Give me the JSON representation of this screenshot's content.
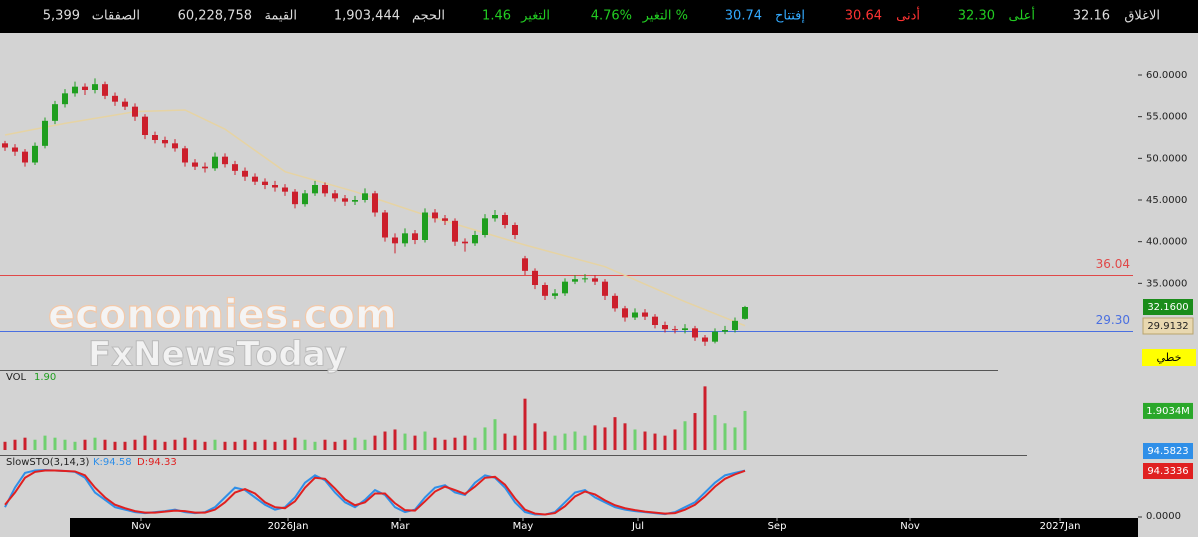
{
  "chart_data": {
    "type": "candlestick",
    "header": [
      {
        "label": "الاغلاق",
        "value": "32.16",
        "color": "#dddddd",
        "value_color": "#dddddd"
      },
      {
        "label": "أعلى",
        "value": "32.30",
        "color": "#22cc22",
        "value_color": "#22cc22"
      },
      {
        "label": "أدنى",
        "value": "30.64",
        "color": "#ff3333",
        "value_color": "#ff3333"
      },
      {
        "label": "إفتتاح",
        "value": "30.74",
        "color": "#33aaff",
        "value_color": "#33aaff"
      },
      {
        "label": "التغير %",
        "value": "4.76%",
        "color": "#22cc22",
        "value_color": "#22cc22"
      },
      {
        "label": "التغير",
        "value": "1.46",
        "color": "#22cc22",
        "value_color": "#22cc22"
      },
      {
        "label": "الحجم",
        "value": "1,903,444",
        "color": "#dddddd",
        "value_color": "#dddddd"
      },
      {
        "label": "القيمة",
        "value": "60,228,758",
        "color": "#dddddd",
        "value_color": "#dddddd"
      },
      {
        "label": "الصفقات",
        "value": "5,399",
        "color": "#dddddd",
        "value_color": "#dddddd"
      }
    ],
    "watermark": [
      "economies.com",
      "FxNewsToday"
    ],
    "up_color": "#1f9e1f",
    "down_color": "#cc1f2c",
    "xlim": [
      -0.5,
      113.5
    ],
    "xticks": [
      {
        "value": 13.6,
        "label": "Nov"
      },
      {
        "value": 28.3,
        "label": "2026Jan"
      },
      {
        "value": 39.5,
        "label": "Mar"
      },
      {
        "value": 51.8,
        "label": "May"
      },
      {
        "value": 63.3,
        "label": "Jul"
      },
      {
        "value": 77.2,
        "label": "Sep"
      },
      {
        "value": 90.5,
        "label": "Nov"
      },
      {
        "value": 105.5,
        "label": "2027Jan"
      }
    ],
    "ylim": [
      24.6,
      65.04
    ],
    "yticks": [
      {
        "value": 35,
        "label": "35.0000"
      },
      {
        "value": 40,
        "label": "40.0000"
      },
      {
        "value": 45,
        "label": "45.0000"
      },
      {
        "value": 50,
        "label": "50.0000"
      },
      {
        "value": 55,
        "label": "55.0000"
      },
      {
        "value": 60,
        "label": "60.0000"
      }
    ],
    "candles": [
      [
        51.8,
        52.1,
        50.9,
        51.3
      ],
      [
        51.3,
        51.7,
        50.3,
        50.8
      ],
      [
        50.8,
        51.1,
        49.0,
        49.5
      ],
      [
        49.5,
        51.9,
        49.2,
        51.5
      ],
      [
        51.5,
        54.9,
        51.2,
        54.5
      ],
      [
        54.5,
        56.9,
        54.1,
        56.5
      ],
      [
        56.5,
        58.3,
        56.1,
        57.8
      ],
      [
        57.8,
        59.2,
        57.4,
        58.6
      ],
      [
        58.6,
        59.0,
        57.6,
        58.2
      ],
      [
        58.2,
        59.6,
        57.8,
        58.9
      ],
      [
        58.9,
        59.2,
        57.1,
        57.5
      ],
      [
        57.5,
        57.9,
        56.3,
        56.8
      ],
      [
        56.8,
        57.2,
        55.8,
        56.2
      ],
      [
        56.2,
        56.6,
        54.5,
        55.0
      ],
      [
        55.0,
        55.3,
        52.3,
        52.8
      ],
      [
        52.8,
        53.2,
        51.8,
        52.2
      ],
      [
        52.2,
        52.6,
        51.3,
        51.8
      ],
      [
        51.8,
        52.3,
        50.8,
        51.2
      ],
      [
        51.2,
        51.5,
        49.0,
        49.5
      ],
      [
        49.5,
        49.9,
        48.6,
        49.0
      ],
      [
        49.0,
        49.5,
        48.3,
        48.8
      ],
      [
        48.8,
        50.7,
        48.5,
        50.2
      ],
      [
        50.2,
        50.6,
        48.9,
        49.3
      ],
      [
        49.3,
        49.7,
        48.0,
        48.5
      ],
      [
        48.5,
        48.9,
        47.3,
        47.8
      ],
      [
        47.8,
        48.2,
        46.8,
        47.2
      ],
      [
        47.2,
        47.6,
        46.3,
        46.8
      ],
      [
        46.8,
        47.3,
        46.0,
        46.5
      ],
      [
        46.5,
        46.9,
        45.5,
        46.0
      ],
      [
        46.0,
        46.3,
        44.0,
        44.5
      ],
      [
        44.5,
        46.2,
        44.2,
        45.8
      ],
      [
        45.8,
        47.3,
        45.5,
        46.8
      ],
      [
        46.8,
        47.1,
        45.4,
        45.8
      ],
      [
        45.8,
        46.2,
        44.8,
        45.2
      ],
      [
        45.2,
        45.6,
        44.3,
        44.8
      ],
      [
        44.8,
        45.5,
        44.4,
        45.0
      ],
      [
        45.0,
        46.4,
        44.7,
        45.8
      ],
      [
        45.8,
        46.1,
        43.0,
        43.5
      ],
      [
        43.5,
        43.8,
        40.0,
        40.5
      ],
      [
        40.5,
        41.0,
        38.6,
        39.8
      ],
      [
        39.8,
        41.6,
        39.4,
        41.0
      ],
      [
        41.0,
        41.4,
        39.7,
        40.2
      ],
      [
        40.2,
        44.0,
        39.9,
        43.5
      ],
      [
        43.5,
        43.9,
        42.3,
        42.8
      ],
      [
        42.8,
        43.2,
        42.0,
        42.5
      ],
      [
        42.5,
        42.8,
        39.5,
        40.0
      ],
      [
        40.0,
        40.4,
        38.8,
        39.8
      ],
      [
        39.8,
        41.3,
        39.5,
        40.8
      ],
      [
        40.8,
        43.3,
        40.5,
        42.8
      ],
      [
        42.8,
        43.8,
        42.4,
        43.2
      ],
      [
        43.2,
        43.5,
        41.6,
        42.0
      ],
      [
        42.0,
        42.3,
        40.3,
        40.8
      ],
      [
        38.0,
        38.3,
        36.0,
        36.5
      ],
      [
        36.5,
        36.8,
        34.3,
        34.8
      ],
      [
        34.8,
        35.1,
        33.0,
        33.5
      ],
      [
        33.5,
        34.3,
        33.1,
        33.8
      ],
      [
        33.8,
        35.6,
        33.5,
        35.2
      ],
      [
        35.2,
        36.0,
        34.9,
        35.5
      ],
      [
        35.5,
        36.1,
        35.1,
        35.6
      ],
      [
        35.6,
        36.0,
        34.8,
        35.2
      ],
      [
        35.2,
        35.5,
        33.0,
        33.5
      ],
      [
        33.5,
        33.8,
        31.6,
        32.0
      ],
      [
        32.0,
        32.3,
        30.4,
        30.9
      ],
      [
        30.9,
        32.0,
        30.6,
        31.5
      ],
      [
        31.5,
        31.9,
        30.6,
        31.0
      ],
      [
        31.0,
        31.3,
        29.6,
        30.0
      ],
      [
        30.0,
        30.4,
        29.1,
        29.5
      ],
      [
        29.5,
        29.9,
        29.0,
        29.4
      ],
      [
        29.4,
        30.1,
        29.0,
        29.6
      ],
      [
        29.6,
        29.9,
        28.1,
        28.5
      ],
      [
        28.5,
        28.8,
        27.5,
        28.0
      ],
      [
        28.0,
        29.6,
        27.8,
        29.2
      ],
      [
        29.2,
        29.9,
        28.9,
        29.4
      ],
      [
        29.4,
        30.9,
        29.1,
        30.5
      ],
      [
        30.74,
        32.3,
        30.64,
        32.16
      ]
    ],
    "price_label": "32.1600",
    "ma": {
      "color": "#e6d3a3",
      "x": [
        0,
        6,
        13,
        18,
        22,
        28,
        35,
        42,
        52,
        60,
        68,
        74
      ],
      "values": [
        52.8,
        54.2,
        55.6,
        55.8,
        53.5,
        48.4,
        46.0,
        43.2,
        39.6,
        37.0,
        32.8,
        29.9132
      ]
    },
    "hlines": [
      {
        "value": 36.04,
        "color": "#e04848"
      },
      {
        "value": 29.3,
        "label": "29.30",
        "color": "#4a6fe0"
      }
    ],
    "line_style_label": "خطي",
    "volume": {
      "title": "VOL",
      "title_value": "1.90",
      "ylim": [
        0,
        3.8
      ],
      "label": "1.9034M",
      "values": [
        0.4,
        0.5,
        0.6,
        0.5,
        0.7,
        0.6,
        0.5,
        0.4,
        0.5,
        0.6,
        0.5,
        0.4,
        0.4,
        0.5,
        0.7,
        0.5,
        0.4,
        0.5,
        0.6,
        0.5,
        0.4,
        0.5,
        0.4,
        0.4,
        0.5,
        0.4,
        0.5,
        0.4,
        0.5,
        0.6,
        0.5,
        0.4,
        0.5,
        0.4,
        0.5,
        0.6,
        0.5,
        0.7,
        0.9,
        1.0,
        0.8,
        0.7,
        0.9,
        0.6,
        0.5,
        0.6,
        0.7,
        0.6,
        1.1,
        1.5,
        0.8,
        0.7,
        2.5,
        1.3,
        0.9,
        0.7,
        0.8,
        0.9,
        0.7,
        1.2,
        1.1,
        1.6,
        1.3,
        1.0,
        0.9,
        0.8,
        0.7,
        1.0,
        1.4,
        1.8,
        3.1,
        1.7,
        1.3,
        1.1,
        1.9034
      ]
    },
    "stochastic": {
      "title": "SlowSTO(3,14,3)",
      "k_label": "K:94.58",
      "d_label": "D:94.33",
      "ylim": [
        0,
        100
      ],
      "yticks": [
        {
          "value": 0,
          "label": "0.0000"
        }
      ],
      "series": [
        {
          "name": "K",
          "color": "#2f8fe8",
          "values": [
            20,
            60,
            90,
            95,
            96,
            95,
            94,
            92,
            80,
            50,
            35,
            20,
            15,
            10,
            8,
            10,
            12,
            15,
            10,
            8,
            10,
            20,
            40,
            60,
            55,
            40,
            25,
            15,
            20,
            40,
            70,
            85,
            75,
            50,
            30,
            20,
            35,
            55,
            45,
            20,
            10,
            15,
            40,
            60,
            65,
            50,
            45,
            70,
            85,
            80,
            60,
            30,
            10,
            5,
            5,
            10,
            30,
            50,
            55,
            40,
            30,
            20,
            15,
            12,
            10,
            8,
            6,
            10,
            20,
            30,
            50,
            70,
            85,
            90,
            94.5823
          ]
        },
        {
          "name": "D",
          "color": "#e02020",
          "values": [
            25,
            50,
            80,
            92,
            95,
            95,
            94,
            93,
            85,
            60,
            40,
            25,
            18,
            12,
            9,
            9,
            11,
            13,
            12,
            9,
            9,
            15,
            30,
            50,
            57,
            48,
            30,
            20,
            18,
            32,
            60,
            80,
            78,
            58,
            36,
            24,
            30,
            48,
            48,
            28,
            14,
            13,
            32,
            52,
            62,
            55,
            47,
            62,
            80,
            82,
            66,
            38,
            15,
            7,
            5,
            8,
            22,
            42,
            52,
            46,
            34,
            24,
            18,
            14,
            11,
            9,
            7,
            8,
            15,
            25,
            42,
            62,
            78,
            87,
            94.3336
          ]
        }
      ]
    }
  }
}
